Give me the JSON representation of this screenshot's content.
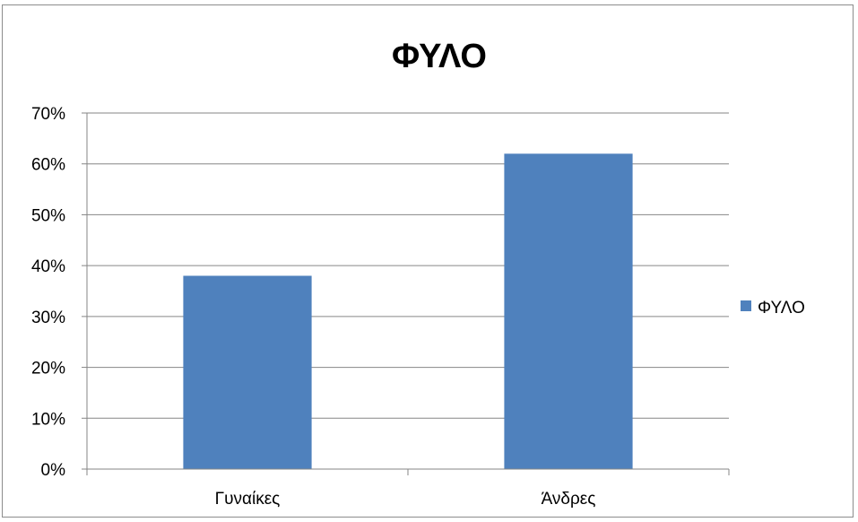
{
  "chart_data": {
    "type": "bar",
    "title": "ΦΥΛΟ",
    "categories": [
      "Γυναίκες",
      "Άνδρες"
    ],
    "series": [
      {
        "name": "ΦΥΛΟ",
        "values": [
          0.38,
          0.62
        ],
        "color": "#4f81bd"
      }
    ],
    "ylim": [
      0,
      0.7
    ],
    "yticks": [
      "0%",
      "10%",
      "20%",
      "30%",
      "40%",
      "50%",
      "60%",
      "70%"
    ],
    "grid": true,
    "legend": "right",
    "xlabel": "",
    "ylabel": ""
  }
}
